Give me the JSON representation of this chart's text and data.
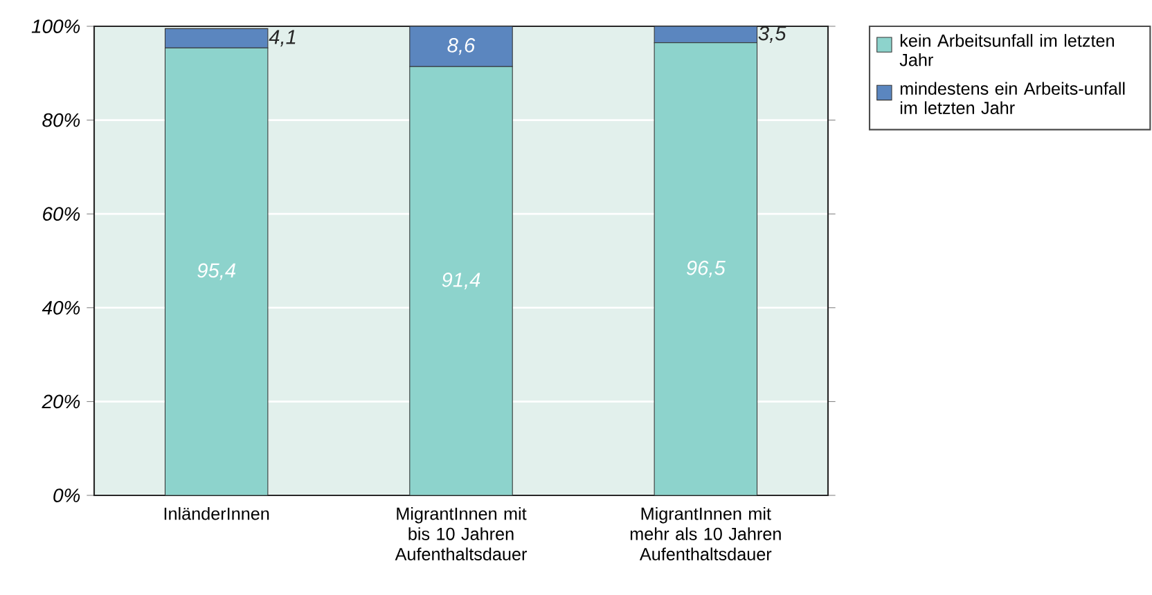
{
  "chart_data": {
    "type": "bar",
    "stacked": true,
    "categories": [
      "InländerInnen",
      "MigrantInnen mit bis 10 Jahren Aufenthaltsdauer",
      "MigrantInnen mit mehr als 10 Jahren Aufenthaltsdauer"
    ],
    "series": [
      {
        "name": "kein Arbeitsunfall im letzten Jahr",
        "color": "#8dd3cc",
        "values": [
          95.4,
          91.4,
          96.5
        ],
        "value_labels": [
          "95,4",
          "91,4",
          "96,5"
        ]
      },
      {
        "name": "mindestens ein Arbeits-unfall im letzten Jahr",
        "color": "#5b86bf",
        "values": [
          4.1,
          8.6,
          3.5
        ],
        "value_labels": [
          "4,1",
          "8,6",
          "3,5"
        ]
      }
    ],
    "ylim": [
      0,
      100
    ],
    "yticks": [
      {
        "value": 0,
        "label": "0%"
      },
      {
        "value": 20,
        "label": "20%"
      },
      {
        "value": 40,
        "label": "40%"
      },
      {
        "value": 60,
        "label": "60%"
      },
      {
        "value": 80,
        "label": "80%"
      },
      {
        "value": 100,
        "label": "100%"
      }
    ],
    "grid": "y",
    "legend": "top right"
  }
}
